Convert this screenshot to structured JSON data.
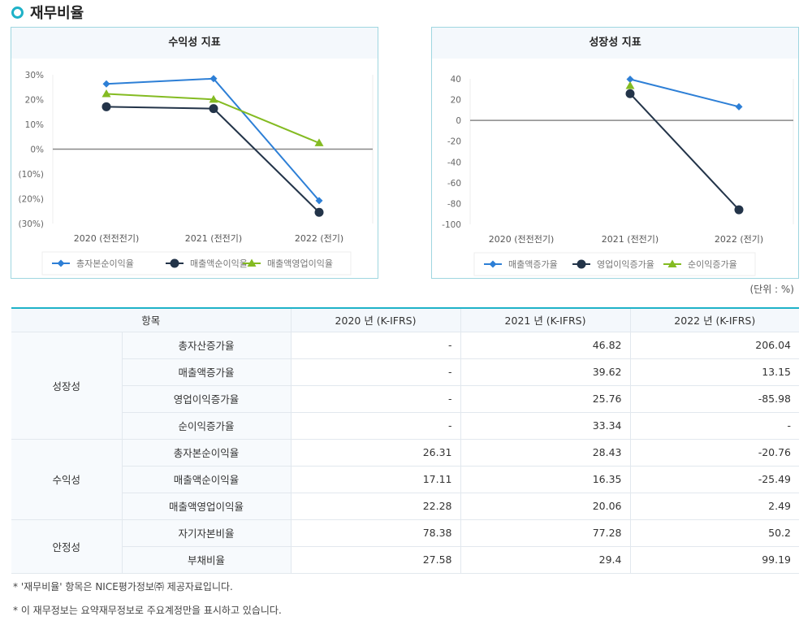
{
  "section_title": "재무비율",
  "unit_label": "(단위 : %)",
  "chart_data": [
    {
      "type": "line",
      "title": "수익성 지표",
      "categories": [
        "2020 (전전전기)",
        "2021 (전전기)",
        "2022 (전기)"
      ],
      "ylim": [
        -30,
        30
      ],
      "yticks": [
        30,
        20,
        10,
        0,
        -10,
        -20,
        -30
      ],
      "ytick_labels": [
        "30%",
        "20%",
        "10%",
        "0%",
        "(10%)",
        "(20%)",
        "(30%)"
      ],
      "legend": "bottom",
      "series": [
        {
          "name": "총자본순이익율",
          "color": "#2d7fd6",
          "marker": "diamond",
          "values": [
            26.31,
            28.43,
            -20.76
          ]
        },
        {
          "name": "매출액순이익율",
          "color": "#233449",
          "marker": "circle",
          "values": [
            17.11,
            16.35,
            -25.49
          ]
        },
        {
          "name": "매출액영업이익율",
          "color": "#84bb22",
          "marker": "triangle",
          "values": [
            22.28,
            20.06,
            2.49
          ]
        }
      ]
    },
    {
      "type": "line",
      "title": "성장성 지표",
      "categories": [
        "2020 (전전전기)",
        "2021 (전전기)",
        "2022 (전기)"
      ],
      "ylim": [
        -100,
        40
      ],
      "yticks": [
        40,
        20,
        0,
        -20,
        -40,
        -60,
        -80,
        -100
      ],
      "ytick_labels": [
        "40",
        "20",
        "0",
        "-20",
        "-40",
        "-60",
        "-80",
        "-100"
      ],
      "legend": "bottom",
      "series": [
        {
          "name": "매출액증가율",
          "color": "#2d7fd6",
          "marker": "diamond",
          "values": [
            null,
            39.62,
            13.15
          ]
        },
        {
          "name": "영업이익증가율",
          "color": "#233449",
          "marker": "circle",
          "values": [
            null,
            25.76,
            -85.98
          ]
        },
        {
          "name": "순이익증가율",
          "color": "#84bb22",
          "marker": "triangle",
          "values": [
            null,
            33.34,
            null
          ]
        }
      ]
    }
  ],
  "table": {
    "headers": [
      "항목",
      "2020 년 (K-IFRS)",
      "2021 년 (K-IFRS)",
      "2022 년 (K-IFRS)"
    ],
    "groups": [
      {
        "name": "성장성",
        "rows": [
          [
            "총자산증가율",
            "-",
            "46.82",
            "206.04"
          ],
          [
            "매출액증가율",
            "-",
            "39.62",
            "13.15"
          ],
          [
            "영업이익증가율",
            "-",
            "25.76",
            "-85.98"
          ],
          [
            "순이익증가율",
            "-",
            "33.34",
            "-"
          ]
        ]
      },
      {
        "name": "수익성",
        "rows": [
          [
            "총자본순이익율",
            "26.31",
            "28.43",
            "-20.76"
          ],
          [
            "매출액순이익율",
            "17.11",
            "16.35",
            "-25.49"
          ],
          [
            "매출액영업이익율",
            "22.28",
            "20.06",
            "2.49"
          ]
        ]
      },
      {
        "name": "안정성",
        "rows": [
          [
            "자기자본비율",
            "78.38",
            "77.28",
            "50.2"
          ],
          [
            "부채비율",
            "27.58",
            "29.4",
            "99.19"
          ]
        ]
      }
    ]
  },
  "notes": [
    "* '재무비율' 항목은 NICE평가정보㈜ 제공자료입니다.",
    "* 이 재무정보는 요약재무정보로 주요계정만을 표시하고 있습니다."
  ]
}
